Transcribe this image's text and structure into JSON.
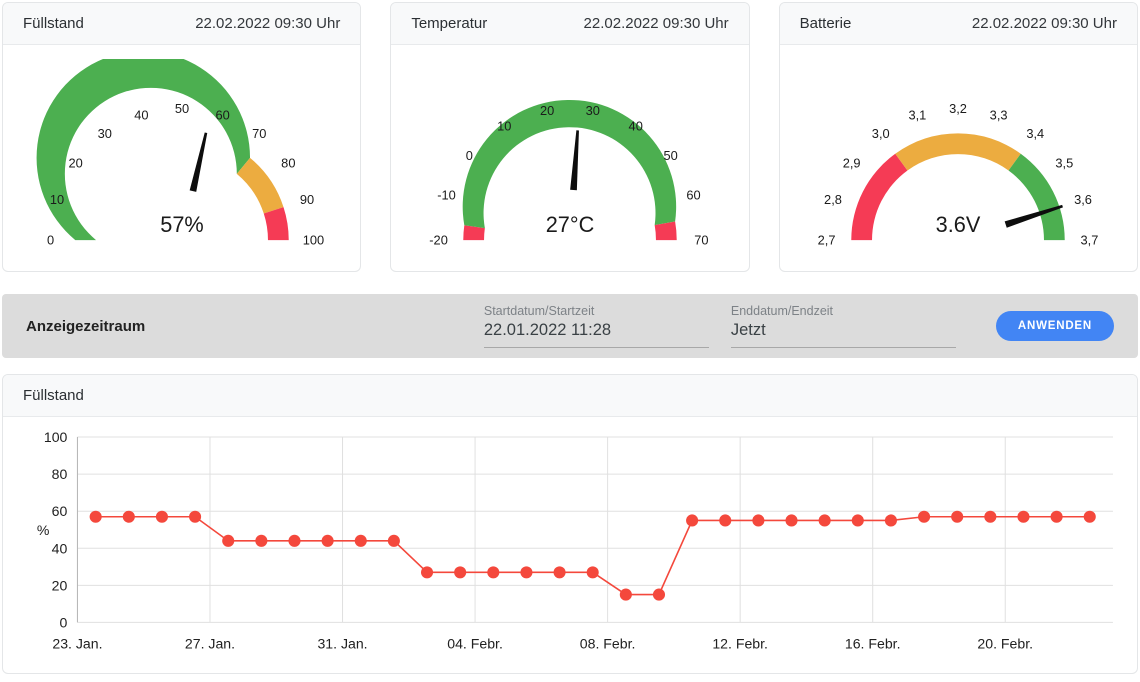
{
  "filter": {
    "title": "Anzeigezeitraum",
    "start": {
      "label": "Startdatum/Startzeit",
      "value": "22.01.2022 11:28"
    },
    "end": {
      "label": "Enddatum/Endzeit",
      "value": "Jetzt"
    },
    "apply_label": "ANWENDEN"
  },
  "colors": {
    "green": "#4caf50",
    "amber": "#ecac40",
    "red": "#f53b55",
    "line_red": "#f4483c",
    "button_blue": "#4285f4",
    "needle": "#0d0d0d",
    "grid": "#e0e0e0",
    "axis": "#b5b5b5",
    "tick_text": "#212121"
  },
  "chart_data": [
    {
      "type": "gauge",
      "title": "Füllstand",
      "timestamp": "22.02.2022 09:30 Uhr",
      "min": 0,
      "max": 100,
      "value": 57,
      "value_label": "57%",
      "ticks": [
        {
          "v": 0,
          "label": "0"
        },
        {
          "v": 10,
          "label": "10"
        },
        {
          "v": 20,
          "label": "20"
        },
        {
          "v": 30,
          "label": "30"
        },
        {
          "v": 40,
          "label": "40"
        },
        {
          "v": 50,
          "label": "50"
        },
        {
          "v": 60,
          "label": "60"
        },
        {
          "v": 70,
          "label": "70"
        },
        {
          "v": 80,
          "label": "80"
        },
        {
          "v": 90,
          "label": "90"
        },
        {
          "v": 100,
          "label": "100"
        }
      ],
      "segments": [
        {
          "from": 0,
          "to": 72,
          "color": "#4caf50"
        },
        {
          "from": 72,
          "to": 90,
          "color": "#ecac40"
        },
        {
          "from": 90,
          "to": 100,
          "color": "#f53b55"
        }
      ]
    },
    {
      "type": "gauge",
      "title": "Temperatur",
      "timestamp": "22.02.2022 09:30 Uhr",
      "min": -20,
      "max": 70,
      "value": 27,
      "value_label": "27°C",
      "ticks": [
        {
          "v": -20,
          "label": "-20"
        },
        {
          "v": -10,
          "label": "-10"
        },
        {
          "v": 0,
          "label": "0"
        },
        {
          "v": 10,
          "label": "10"
        },
        {
          "v": 20,
          "label": "20"
        },
        {
          "v": 30,
          "label": "30"
        },
        {
          "v": 40,
          "label": "40"
        },
        {
          "v": 50,
          "label": "50"
        },
        {
          "v": 60,
          "label": "60"
        },
        {
          "v": 70,
          "label": "70"
        }
      ],
      "segments": [
        {
          "from": -20,
          "to": -16,
          "color": "#f53b55"
        },
        {
          "from": -16,
          "to": 65,
          "color": "#4caf50"
        },
        {
          "from": 65,
          "to": 70,
          "color": "#f53b55"
        }
      ]
    },
    {
      "type": "gauge",
      "title": "Batterie",
      "timestamp": "22.02.2022 09:30 Uhr",
      "min": 2.7,
      "max": 3.7,
      "value": 3.6,
      "value_label": "3.6V",
      "ticks": [
        {
          "v": 2.7,
          "label": "2,7"
        },
        {
          "v": 2.8,
          "label": "2,8"
        },
        {
          "v": 2.9,
          "label": "2,9"
        },
        {
          "v": 3.0,
          "label": "3,0"
        },
        {
          "v": 3.1,
          "label": "3,1"
        },
        {
          "v": 3.2,
          "label": "3,2"
        },
        {
          "v": 3.3,
          "label": "3,3"
        },
        {
          "v": 3.4,
          "label": "3,4"
        },
        {
          "v": 3.5,
          "label": "3,5"
        },
        {
          "v": 3.6,
          "label": "3,6"
        },
        {
          "v": 3.7,
          "label": "3,7"
        }
      ],
      "segments": [
        {
          "from": 2.7,
          "to": 3.0,
          "color": "#f53b55"
        },
        {
          "from": 3.0,
          "to": 3.4,
          "color": "#ecac40"
        },
        {
          "from": 3.4,
          "to": 3.7,
          "color": "#4caf50"
        }
      ]
    },
    {
      "type": "line",
      "title": "Füllstand",
      "ylabel": "%",
      "ylim": [
        0,
        100
      ],
      "y_ticks": [
        0,
        20,
        40,
        60,
        80,
        100
      ],
      "x_tick_labels": [
        "23. Jan.",
        "27. Jan.",
        "31. Jan.",
        "04. Febr.",
        "08. Febr.",
        "12. Febr.",
        "16. Febr.",
        "20. Febr."
      ],
      "x_tick_days": [
        0,
        4,
        8,
        12,
        16,
        20,
        24,
        28
      ],
      "x_domain_days": 31.25,
      "point_offset_days": 0.55,
      "grid": true,
      "legend": "none",
      "dates": [
        "23.01.",
        "24.01.",
        "25.01.",
        "26.01.",
        "27.01.",
        "28.01.",
        "29.01.",
        "30.01.",
        "31.01.",
        "01.02.",
        "02.02.",
        "03.02.",
        "04.02.",
        "05.02.",
        "06.02.",
        "07.02.",
        "08.02.",
        "09.02.",
        "10.02.",
        "11.02.",
        "12.02.",
        "13.02.",
        "14.02.",
        "15.02.",
        "16.02.",
        "17.02.",
        "18.02.",
        "19.02.",
        "20.02.",
        "21.02.",
        "22.02."
      ],
      "values": [
        57,
        57,
        57,
        57,
        44,
        44,
        44,
        44,
        44,
        44,
        27,
        27,
        27,
        27,
        27,
        27,
        15,
        15,
        55,
        55,
        55,
        55,
        55,
        55,
        55,
        57,
        57,
        57,
        57,
        57,
        57
      ],
      "line_color": "#f4483c",
      "marker_radius": 6
    }
  ]
}
